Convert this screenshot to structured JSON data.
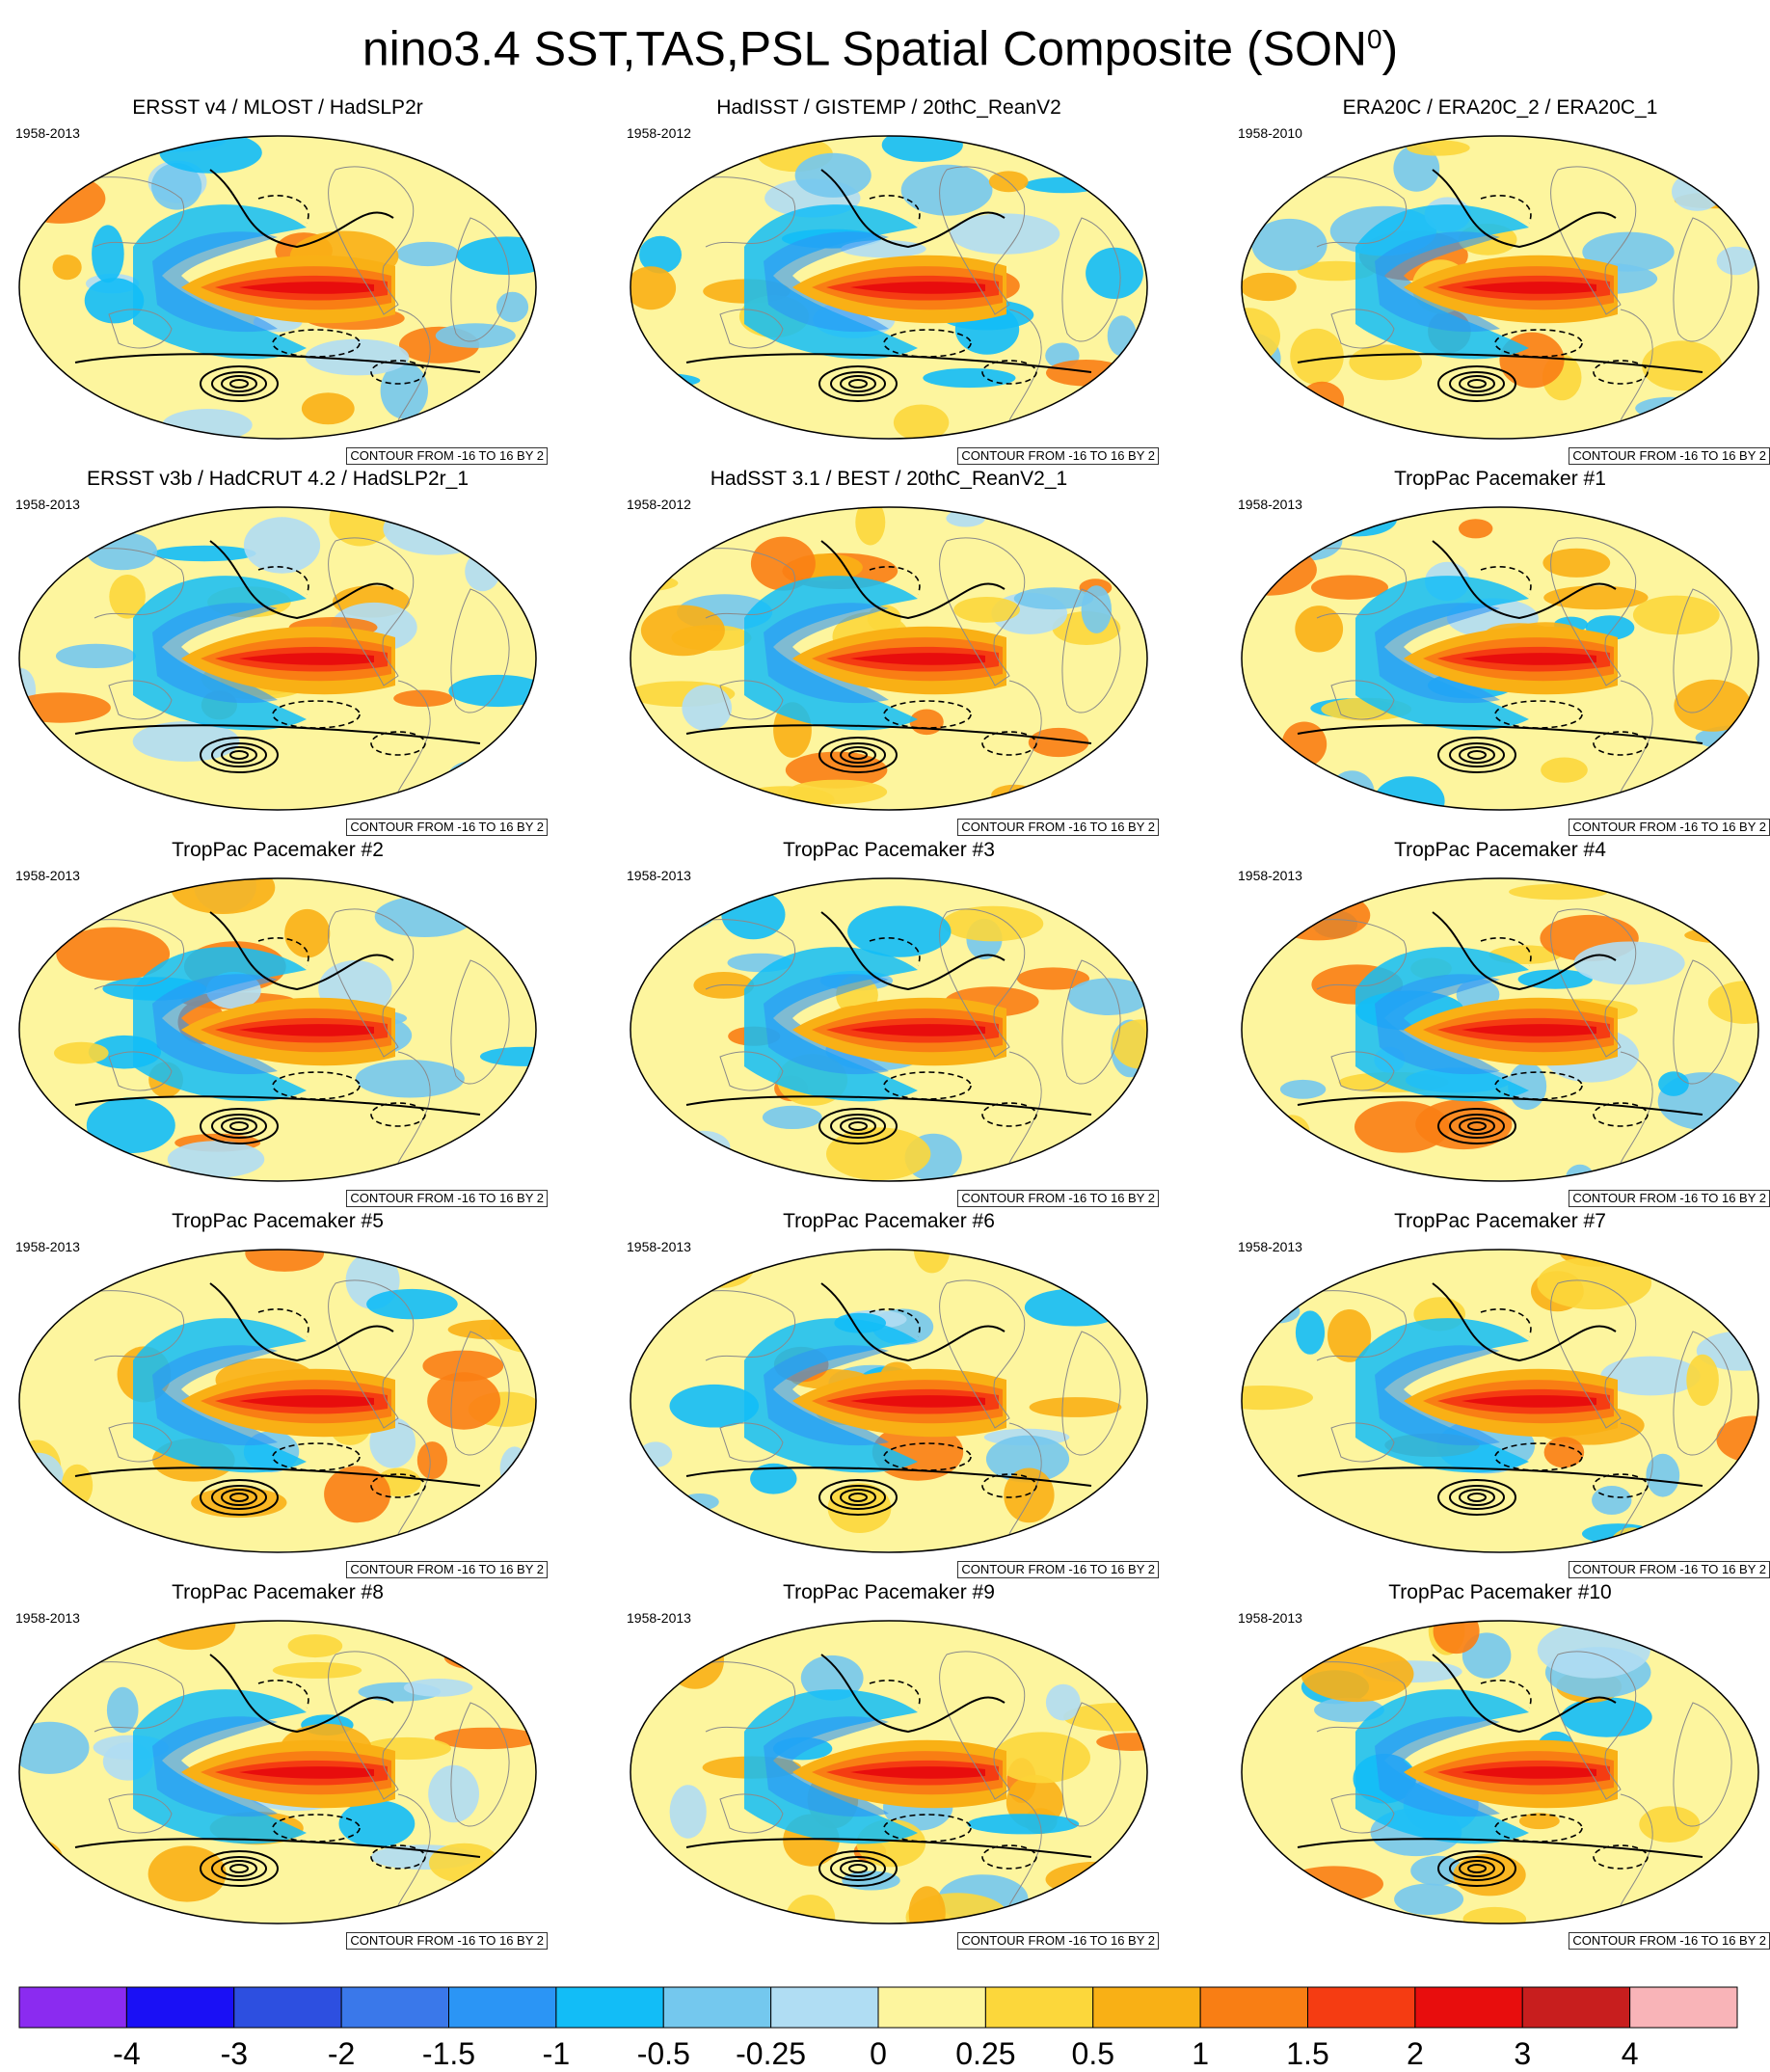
{
  "title": {
    "main": "nino3.4 SST,TAS,PSL Spatial Composite (SON",
    "sup": "0",
    "close": ")"
  },
  "panels": [
    {
      "title": "ERSST v4 / MLOST / HadSLP2r",
      "years": "1958-2013",
      "contour_note": "CONTOUR FROM -16 TO 16 BY 2"
    },
    {
      "title": "HadISST / GISTEMP / 20thC_ReanV2",
      "years": "1958-2012",
      "contour_note": "CONTOUR FROM -16 TO 16 BY 2"
    },
    {
      "title": "ERA20C / ERA20C_2 / ERA20C_1",
      "years": "1958-2010",
      "contour_note": "CONTOUR FROM -16 TO 16 BY 2"
    },
    {
      "title": "ERSST v3b / HadCRUT 4.2 / HadSLP2r_1",
      "years": "1958-2013",
      "contour_note": "CONTOUR FROM -16 TO 16 BY 2"
    },
    {
      "title": "HadSST 3.1 / BEST / 20thC_ReanV2_1",
      "years": "1958-2012",
      "contour_note": "CONTOUR FROM -16 TO 16 BY 2"
    },
    {
      "title": "TropPac Pacemaker #1",
      "years": "1958-2013",
      "contour_note": "CONTOUR FROM -16 TO 16 BY 2"
    },
    {
      "title": "TropPac Pacemaker #2",
      "years": "1958-2013",
      "contour_note": "CONTOUR FROM -16 TO 16 BY 2"
    },
    {
      "title": "TropPac Pacemaker #3",
      "years": "1958-2013",
      "contour_note": "CONTOUR FROM -16 TO 16 BY 2"
    },
    {
      "title": "TropPac Pacemaker #4",
      "years": "1958-2013",
      "contour_note": "CONTOUR FROM -16 TO 16 BY 2"
    },
    {
      "title": "TropPac Pacemaker #5",
      "years": "1958-2013",
      "contour_note": "CONTOUR FROM -16 TO 16 BY 2"
    },
    {
      "title": "TropPac Pacemaker #6",
      "years": "1958-2013",
      "contour_note": "CONTOUR FROM -16 TO 16 BY 2"
    },
    {
      "title": "TropPac Pacemaker #7",
      "years": "1958-2013",
      "contour_note": "CONTOUR FROM -16 TO 16 BY 2"
    },
    {
      "title": "TropPac Pacemaker #8",
      "years": "1958-2013",
      "contour_note": "CONTOUR FROM -16 TO 16 BY 2"
    },
    {
      "title": "TropPac Pacemaker #9",
      "years": "1958-2013",
      "contour_note": "CONTOUR FROM -16 TO 16 BY 2"
    },
    {
      "title": "TropPac Pacemaker #10",
      "years": "1958-2013",
      "contour_note": "CONTOUR FROM -16 TO 16 BY 2"
    }
  ],
  "colorbar": {
    "labels": [
      "-4",
      "-3",
      "-2",
      "-1.5",
      "-1",
      "-0.5",
      "-0.25",
      "0",
      "0.25",
      "0.5",
      "1",
      "1.5",
      "2",
      "3",
      "4"
    ],
    "colors": [
      "#8b2bf0",
      "#1a10f5",
      "#2d4fe0",
      "#3a78ea",
      "#2b95f5",
      "#12bdf7",
      "#74c8ee",
      "#b0ddf3",
      "#fdf59e",
      "#fcd73b",
      "#f9b015",
      "#f97e14",
      "#f53c12",
      "#e80d0d",
      "#c81e1e",
      "#f9b4b8"
    ]
  },
  "chart_data": {
    "type": "heatmap",
    "title": "nino3.4 SST,TAS,PSL Spatial Composite (SON0)",
    "shading_levels": [
      -4,
      -3,
      -2,
      -1.5,
      -1,
      -0.5,
      -0.25,
      0,
      0.25,
      0.5,
      1,
      1.5,
      2,
      3,
      4
    ],
    "contour_levels": {
      "from": -16,
      "to": 16,
      "by": 2
    },
    "projection": "robinson-like global ellipse, Pacific-centered",
    "features": [
      "Strong warm anomaly (2 to 4) along the equatorial eastern/central Pacific",
      "Horseshoe of cool anomalies (-0.5 to -1.5) in the western and mid-latitude Pacific",
      "Closed solid (positive) PSL contours over the South Pacific near the Amundsen Sea",
      "Dashed (negative) PSL contours over the eastern tropical Pacific and mid-latitudes"
    ],
    "panels": [
      "ERSST v4 / MLOST / HadSLP2r",
      "HadISST / GISTEMP / 20thC_ReanV2",
      "ERA20C / ERA20C_2 / ERA20C_1",
      "ERSST v3b / HadCRUT 4.2 / HadSLP2r_1",
      "HadSST 3.1 / BEST / 20thC_ReanV2_1",
      "TropPac Pacemaker #1",
      "TropPac Pacemaker #2",
      "TropPac Pacemaker #3",
      "TropPac Pacemaker #4",
      "TropPac Pacemaker #5",
      "TropPac Pacemaker #6",
      "TropPac Pacemaker #7",
      "TropPac Pacemaker #8",
      "TropPac Pacemaker #9",
      "TropPac Pacemaker #10"
    ]
  }
}
